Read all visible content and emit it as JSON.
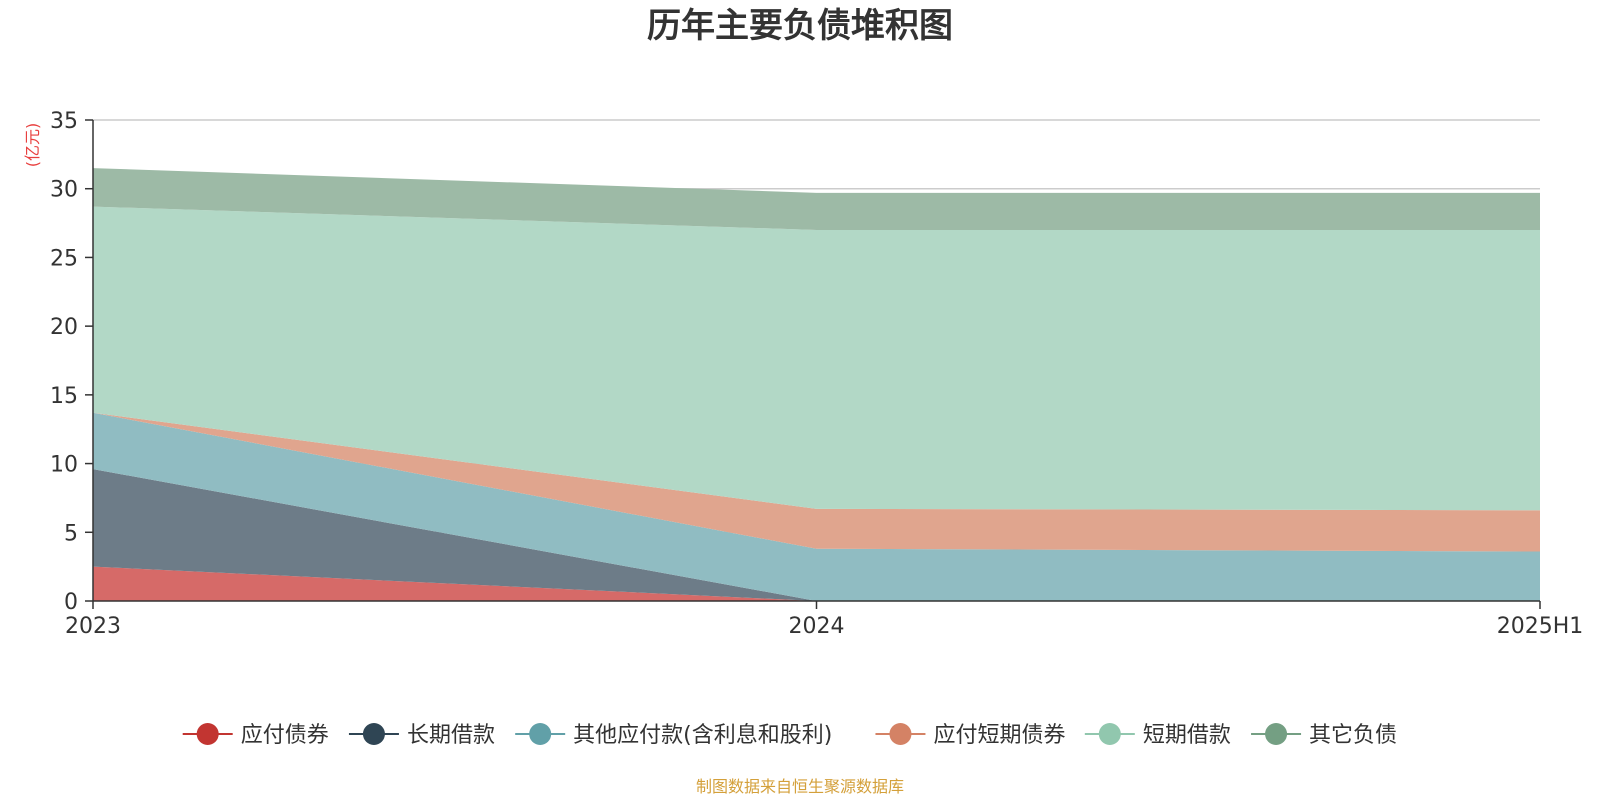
{
  "chart_data": {
    "type": "area",
    "title": "历年主要负债堆积图",
    "ylabel": "(亿元)",
    "x": [
      "2023",
      "2024",
      "2025H1"
    ],
    "ylim": [
      0,
      35
    ],
    "yticks": [
      0,
      5,
      10,
      15,
      20,
      25,
      30,
      35
    ],
    "stacked": true,
    "grid": true,
    "legend_position": "bottom",
    "series": [
      {
        "name": "应付债券",
        "values": [
          2.5,
          0.0,
          0.0
        ],
        "color": "#c23531",
        "fill": "#d66a68"
      },
      {
        "name": "长期借款",
        "values": [
          7.1,
          0.0,
          0.0
        ],
        "color": "#2f4554",
        "fill": "#6d7c88"
      },
      {
        "name": "其他应付款(含利息和股利)",
        "values": [
          4.1,
          3.8,
          3.6
        ],
        "color": "#61a0a8",
        "fill": "#90bcc2"
      },
      {
        "name": "应付短期债券",
        "values": [
          0.0,
          2.9,
          3.0
        ],
        "color": "#d48265",
        "fill": "#e0a58e"
      },
      {
        "name": "短期借款",
        "values": [
          15.0,
          20.3,
          20.4
        ],
        "color": "#91c7ae",
        "fill": "#b2d8c6"
      },
      {
        "name": "其它负债",
        "values": [
          2.8,
          2.7,
          2.7
        ],
        "color": "#749f83",
        "fill": "#9dbaa6"
      }
    ]
  },
  "source_text": "制图数据来自恒生聚源数据库",
  "colors": {
    "title": "#333333",
    "unit_label": "#e8403f",
    "source": "#d4a03a",
    "grid": "#cccccc",
    "axis": "#333333"
  }
}
